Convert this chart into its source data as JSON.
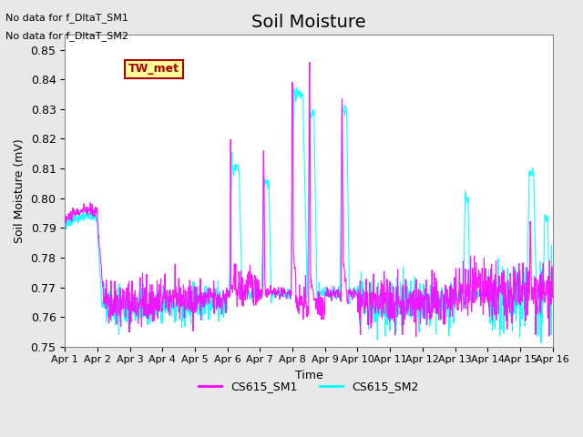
{
  "title": "Soil Moisture",
  "ylabel": "Soil Moisture (mV)",
  "xlabel": "Time",
  "ylim": [
    0.75,
    0.855
  ],
  "yticks": [
    0.75,
    0.76,
    0.77,
    0.78,
    0.79,
    0.8,
    0.81,
    0.82,
    0.83,
    0.84,
    0.85
  ],
  "xtick_labels": [
    "Apr 1",
    "Apr 2",
    "Apr 3",
    "Apr 4",
    "Apr 5",
    "Apr 6",
    "Apr 7",
    "Apr 8",
    "Apr 9",
    "Apr 10",
    "Apr 11",
    "Apr 12",
    "Apr 13",
    "Apr 14",
    "Apr 15",
    "Apr 16"
  ],
  "color_sm1": "#FF00FF",
  "color_sm2": "#00FFFF",
  "legend_labels": [
    "CS615_SM1",
    "CS615_SM2"
  ],
  "no_data_text": [
    "No data for f_DltaT_SM1",
    "No data for f_DltaT_SM2"
  ],
  "box_label": "TW_met",
  "box_facecolor": "#FFFF99",
  "box_edgecolor": "#AA0000",
  "box_textcolor": "#AA0000",
  "background_color": "#E8E8E8",
  "plot_background": "#FFFFFF",
  "grid_color": "#FFFFFF",
  "title_fontsize": 14
}
